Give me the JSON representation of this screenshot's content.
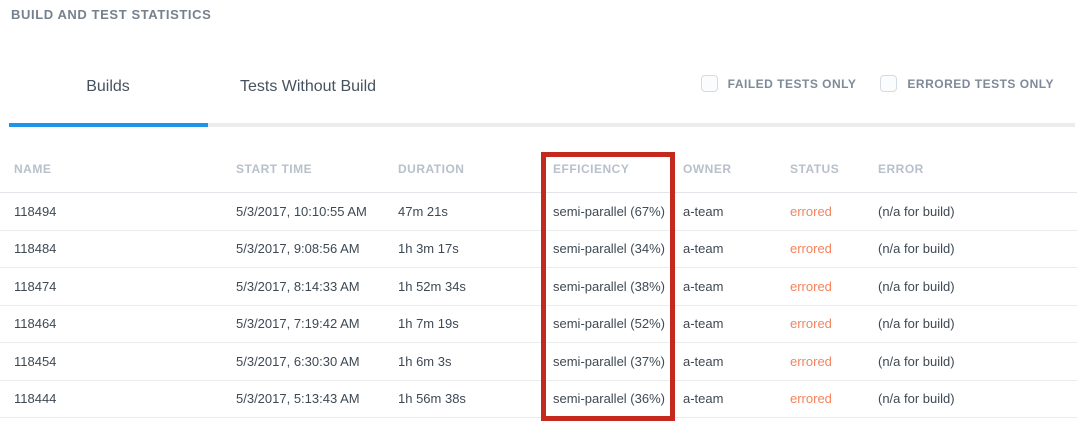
{
  "page": {
    "title": "BUILD AND TEST STATISTICS"
  },
  "tabs": [
    {
      "label": "Builds",
      "active": true
    },
    {
      "label": "Tests Without Build",
      "active": false
    }
  ],
  "filters": [
    {
      "label": "FAILED TESTS ONLY",
      "checked": false
    },
    {
      "label": "ERRORED TESTS ONLY",
      "checked": false
    }
  ],
  "table": {
    "columns": [
      "NAME",
      "START TIME",
      "DURATION",
      "EFFICIENCY",
      "OWNER",
      "STATUS",
      "ERROR"
    ],
    "rows": [
      {
        "name": "118494",
        "start_time": "5/3/2017, 10:10:55 AM",
        "duration": "47m 21s",
        "efficiency": "semi-parallel (67%)",
        "owner": "a-team",
        "status": "errored",
        "error": "(n/a for build)"
      },
      {
        "name": "118484",
        "start_time": "5/3/2017, 9:08:56 AM",
        "duration": "1h 3m 17s",
        "efficiency": "semi-parallel (34%)",
        "owner": "a-team",
        "status": "errored",
        "error": "(n/a for build)"
      },
      {
        "name": "118474",
        "start_time": "5/3/2017, 8:14:33 AM",
        "duration": "1h 52m 34s",
        "efficiency": "semi-parallel (38%)",
        "owner": "a-team",
        "status": "errored",
        "error": "(n/a for build)"
      },
      {
        "name": "118464",
        "start_time": "5/3/2017, 7:19:42 AM",
        "duration": "1h 7m 19s",
        "efficiency": "semi-parallel (52%)",
        "owner": "a-team",
        "status": "errored",
        "error": "(n/a for build)"
      },
      {
        "name": "118454",
        "start_time": "5/3/2017, 6:30:30 AM",
        "duration": "1h 6m 3s",
        "efficiency": "semi-parallel (37%)",
        "owner": "a-team",
        "status": "errored",
        "error": "(n/a for build)"
      },
      {
        "name": "118444",
        "start_time": "5/3/2017, 5:13:43 AM",
        "duration": "1h 56m 38s",
        "efficiency": "semi-parallel (36%)",
        "owner": "a-team",
        "status": "errored",
        "error": "(n/a for build)"
      }
    ]
  },
  "annotation": {
    "type": "red-box",
    "highlights": "EFFICIENCY column"
  },
  "colors": {
    "accent_blue": "#1e95e9",
    "status_errored": "#f4845e",
    "annotation_red": "#c5281c",
    "header_gray": "#b8c0cb"
  }
}
